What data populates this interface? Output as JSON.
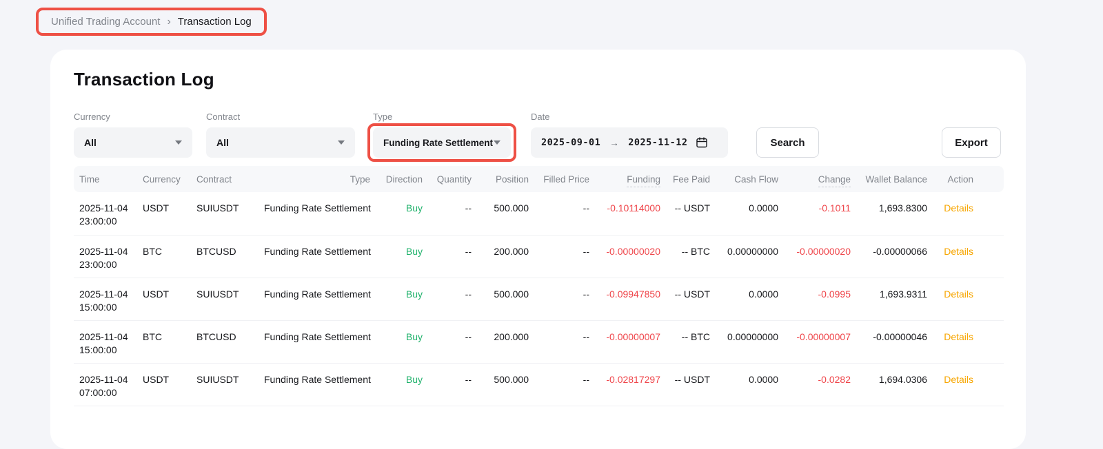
{
  "breadcrumb": {
    "separator": "›",
    "items": [
      {
        "label": "Unified Trading Account"
      },
      {
        "label": "Transaction Log"
      }
    ]
  },
  "page_title": "Transaction Log",
  "filters": {
    "currency": {
      "label": "Currency",
      "value": "All"
    },
    "contract": {
      "label": "Contract",
      "value": "All"
    },
    "type": {
      "label": "Type",
      "value": "Funding Rate Settlement",
      "highlighted": true
    },
    "date": {
      "label": "Date",
      "start": "2025-09-01",
      "end": "2025-11-12",
      "arrow": "→"
    },
    "search_label": "Search",
    "export_label": "Export"
  },
  "table": {
    "columns": [
      {
        "key": "time",
        "label": "Time",
        "align": "left"
      },
      {
        "key": "currency",
        "label": "Currency",
        "align": "left"
      },
      {
        "key": "contract",
        "label": "Contract",
        "align": "left"
      },
      {
        "key": "type",
        "label": "Type",
        "align": "right"
      },
      {
        "key": "direction",
        "label": "Direction",
        "align": "right"
      },
      {
        "key": "quantity",
        "label": "Quantity",
        "align": "right"
      },
      {
        "key": "position",
        "label": "Position",
        "align": "right"
      },
      {
        "key": "filled_price",
        "label": "Filled Price",
        "align": "right"
      },
      {
        "key": "funding",
        "label": "Funding",
        "align": "right",
        "underline": true
      },
      {
        "key": "fee_paid",
        "label": "Fee Paid",
        "align": "right"
      },
      {
        "key": "cash_flow",
        "label": "Cash Flow",
        "align": "right"
      },
      {
        "key": "change",
        "label": "Change",
        "align": "right",
        "underline": true
      },
      {
        "key": "wallet_balance",
        "label": "Wallet Balance",
        "align": "right"
      },
      {
        "key": "action",
        "label": "Action",
        "align": "right"
      }
    ],
    "rows": [
      {
        "time": {
          "date": "2025-11-04",
          "clock": "23:00:00"
        },
        "currency": "USDT",
        "contract": "SUIUSDT",
        "type": "Funding Rate Settlement",
        "direction": "Buy",
        "quantity": "--",
        "position": "500.000",
        "filled_price": "--",
        "funding": "-0.10114000",
        "fee_paid": "-- USDT",
        "cash_flow": "0.0000",
        "change": "-0.1011",
        "wallet_balance": "1,693.8300",
        "action": "Details"
      },
      {
        "time": {
          "date": "2025-11-04",
          "clock": "23:00:00"
        },
        "currency": "BTC",
        "contract": "BTCUSD",
        "type": "Funding Rate Settlement",
        "direction": "Buy",
        "quantity": "--",
        "position": "200.000",
        "filled_price": "--",
        "funding": "-0.00000020",
        "fee_paid": "-- BTC",
        "cash_flow": "0.00000000",
        "change": "-0.00000020",
        "wallet_balance": "-0.00000066",
        "action": "Details"
      },
      {
        "time": {
          "date": "2025-11-04",
          "clock": "15:00:00"
        },
        "currency": "USDT",
        "contract": "SUIUSDT",
        "type": "Funding Rate Settlement",
        "direction": "Buy",
        "quantity": "--",
        "position": "500.000",
        "filled_price": "--",
        "funding": "-0.09947850",
        "fee_paid": "-- USDT",
        "cash_flow": "0.0000",
        "change": "-0.0995",
        "wallet_balance": "1,693.9311",
        "action": "Details"
      },
      {
        "time": {
          "date": "2025-11-04",
          "clock": "15:00:00"
        },
        "currency": "BTC",
        "contract": "BTCUSD",
        "type": "Funding Rate Settlement",
        "direction": "Buy",
        "quantity": "--",
        "position": "200.000",
        "filled_price": "--",
        "funding": "-0.00000007",
        "fee_paid": "-- BTC",
        "cash_flow": "0.00000000",
        "change": "-0.00000007",
        "wallet_balance": "-0.00000046",
        "action": "Details"
      },
      {
        "time": {
          "date": "2025-11-04",
          "clock": "07:00:00"
        },
        "currency": "USDT",
        "contract": "SUIUSDT",
        "type": "Funding Rate Settlement",
        "direction": "Buy",
        "quantity": "--",
        "position": "500.000",
        "filled_price": "--",
        "funding": "-0.02817297",
        "fee_paid": "-- USDT",
        "cash_flow": "0.0000",
        "change": "-0.0282",
        "wallet_balance": "1,694.0306",
        "action": "Details"
      }
    ]
  },
  "colors": {
    "buy_green": "#20b26c",
    "negative_red": "#ef454a",
    "link_orange": "#f7a600",
    "annotation_red": "#ee5045",
    "page_background": "#f4f5f9"
  }
}
